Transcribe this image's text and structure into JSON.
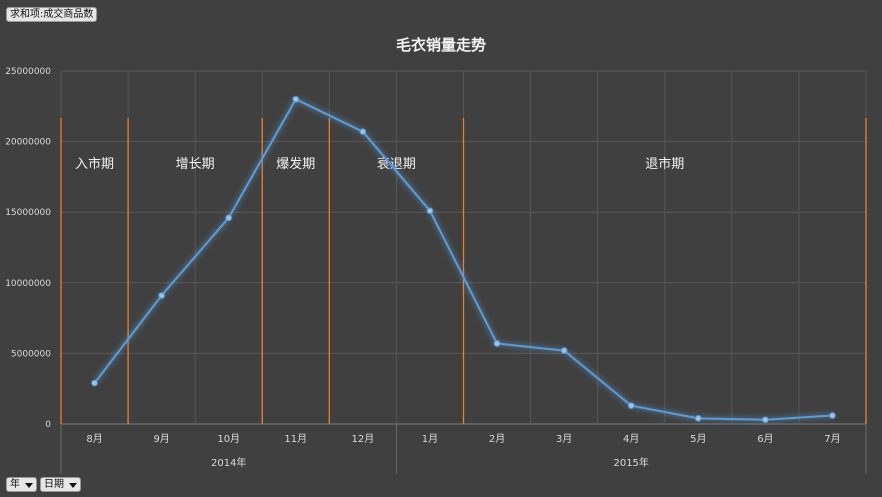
{
  "pivot": {
    "value_field_label": "求和项:成交商品数",
    "filter_year_label": "年",
    "filter_date_label": "日期"
  },
  "chart_data": {
    "type": "line",
    "title": "毛衣销量走势",
    "categories": [
      "8月",
      "9月",
      "10月",
      "11月",
      "12月",
      "1月",
      "2月",
      "3月",
      "4月",
      "5月",
      "6月",
      "7月"
    ],
    "year_groups": [
      {
        "label": "2014年",
        "categories": [
          "8月",
          "9月",
          "10月",
          "11月",
          "12月"
        ]
      },
      {
        "label": "2015年",
        "categories": [
          "1月",
          "2月",
          "3月",
          "4月",
          "5月",
          "6月",
          "7月"
        ]
      }
    ],
    "series": [
      {
        "values": [
          2900000,
          9100000,
          14600000,
          23000000,
          20700000,
          15100000,
          5700000,
          5200000,
          1300000,
          400000,
          300000,
          600000
        ]
      }
    ],
    "ylim": [
      0,
      25000000
    ],
    "yticks": [
      0,
      5000000,
      10000000,
      15000000,
      20000000,
      25000000
    ],
    "ytick_labels": [
      "0",
      "5000000",
      "10000000",
      "15000000",
      "20000000",
      "25000000"
    ],
    "grid": true,
    "line_color": "#5b9bd5",
    "phase_line_color": "#ed7d31",
    "phases": [
      {
        "label": "入市期",
        "start": "8月",
        "end": "8月"
      },
      {
        "label": "增长期",
        "start": "9月",
        "end": "10月"
      },
      {
        "label": "爆发期",
        "start": "11月",
        "end": "11月"
      },
      {
        "label": "衰退期",
        "start": "12月",
        "end": "1月"
      },
      {
        "label": "退市期",
        "start": "2月",
        "end": "7月"
      }
    ]
  }
}
